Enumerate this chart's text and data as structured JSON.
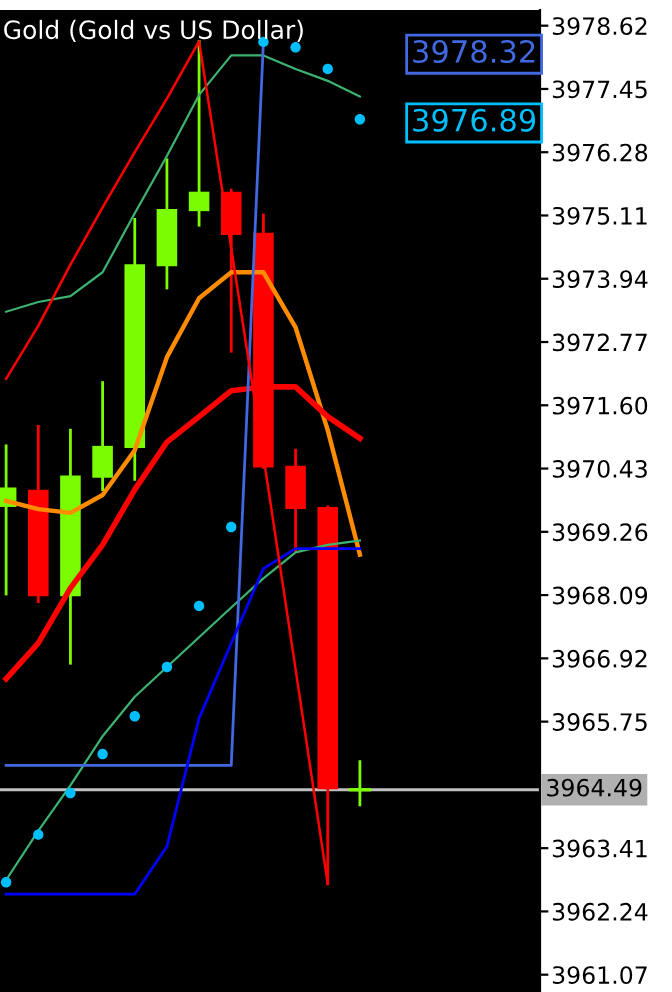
{
  "chart_data": {
    "type": "candlestick",
    "title": "Gold (Gold vs US Dollar)",
    "categories": [
      null,
      null,
      null,
      null,
      null,
      null,
      null,
      null,
      null,
      null,
      null,
      null
    ],
    "ohlc": [
      [
        3969.72,
        3970.85,
        3968.11,
        3970.08
      ],
      [
        3970.04,
        3971.21,
        3967.97,
        3968.07
      ],
      [
        3968.07,
        3971.14,
        3966.83,
        3970.3
      ],
      [
        3970.26,
        3972.02,
        3970.04,
        3970.85
      ],
      [
        3970.81,
        3975.04,
        3970.23,
        3974.21
      ],
      [
        3974.17,
        3976.14,
        3973.77,
        3975.23
      ],
      [
        3975.19,
        3978.33,
        3974.93,
        3975.55
      ],
      [
        3975.55,
        3975.58,
        3972.6,
        3974.75
      ],
      [
        3974.79,
        3975.12,
        3970.45,
        3970.45
      ],
      [
        3970.48,
        3970.77,
        3968.91,
        3969.68
      ],
      [
        3969.72,
        3969.72,
        3962.75,
        3964.5
      ],
      [
        3964.49,
        3965.01,
        3964.21,
        3964.49
      ]
    ],
    "colors": [
      "#7cfc00",
      "#ff0000",
      "#7cfc00",
      "#7cfc00",
      "#7cfc00",
      "#7cfc00",
      "#7cfc00",
      "#ff0000",
      "#ff0000",
      "#ff0000",
      "#ff0000",
      "#7cfc00"
    ],
    "series": [
      {
        "type": "line",
        "color": "#ff8c00",
        "values": [
          3969.83,
          3969.68,
          3969.61,
          3969.94,
          3970.77,
          3972.49,
          3973.58,
          3974.06,
          3974.06,
          3973.04,
          3971.14,
          3968.84
        ]
      },
      {
        "type": "line",
        "color": "#ff0000",
        "values": [
          3966.54,
          3967.2,
          3968.22,
          3969.02,
          3970.04,
          3970.92,
          3971.39,
          3971.87,
          3971.94,
          3971.94,
          3971.39,
          3970.99
        ]
      },
      {
        "type": "line",
        "color": "#3cb371",
        "values": [
          3973.33,
          3973.51,
          3973.62,
          3974.06,
          3975.15,
          3976.21,
          3977.34,
          3978.07,
          3978.07,
          3977.82,
          3977.6,
          3977.31
        ]
      },
      {
        "type": "line",
        "color": "#3cb371",
        "values": [
          3962.82,
          3963.73,
          3964.57,
          3965.48,
          3966.21,
          3966.76,
          3967.31,
          3967.86,
          3968.4,
          3968.88,
          3969.02,
          3969.1
        ]
      },
      {
        "type": "line",
        "color": "#4169e1",
        "values": [
          3964.94,
          3964.94,
          3964.94,
          3964.94,
          3964.94,
          3964.94,
          3964.94,
          3964.94,
          3978.32,
          null,
          null,
          null
        ]
      },
      {
        "type": "line",
        "color": "#0000ff",
        "values": [
          3962.56,
          3962.56,
          3962.56,
          3962.56,
          3962.56,
          3963.44,
          3965.81,
          3967.2,
          3968.58,
          3968.95,
          3968.95,
          3968.95
        ]
      },
      {
        "type": "line",
        "color": "#ff0000",
        "values": [
          3972.09,
          3973.07,
          3974.2,
          3975.26,
          3976.28,
          3977.27,
          3978.33,
          3974.5,
          3970.66,
          3966.72,
          3962.75,
          null
        ]
      },
      {
        "type": "scatter",
        "color": "#00bfff",
        "values": [
          3962.78,
          3963.66,
          3964.43,
          3965.15,
          3965.85,
          3966.76,
          3967.89,
          3969.35,
          3978.32,
          3978.22,
          3977.82,
          3976.89
        ]
      }
    ],
    "annotations": [
      "3978.32",
      "3976.89"
    ],
    "ref_lines": [
      {
        "axis": "y",
        "value": 3964.49,
        "label": "3964.49",
        "color": "#c0c0c0"
      }
    ],
    "ylim": [
      3960.75,
      3978.91
    ],
    "yticks": [
      {
        "value": 3978.62,
        "label": "3978.62"
      },
      {
        "value": 3977.45,
        "label": "3977.45"
      },
      {
        "value": 3976.28,
        "label": "3976.28"
      },
      {
        "value": 3975.11,
        "label": "3975.11"
      },
      {
        "value": 3973.94,
        "label": "3973.94"
      },
      {
        "value": 3972.77,
        "label": "3972.77"
      },
      {
        "value": 3971.6,
        "label": "3971.60"
      },
      {
        "value": 3970.43,
        "label": "3970.43"
      },
      {
        "value": 3969.26,
        "label": "3969.26"
      },
      {
        "value": 3968.09,
        "label": "3968.09"
      },
      {
        "value": 3966.92,
        "label": "3966.92"
      },
      {
        "value": 3965.75,
        "label": "3965.75"
      },
      {
        "value": 3963.41,
        "label": "3963.41"
      },
      {
        "value": 3962.24,
        "label": "3962.24"
      },
      {
        "value": 3961.07,
        "label": "3961.07"
      }
    ],
    "grid": false
  }
}
